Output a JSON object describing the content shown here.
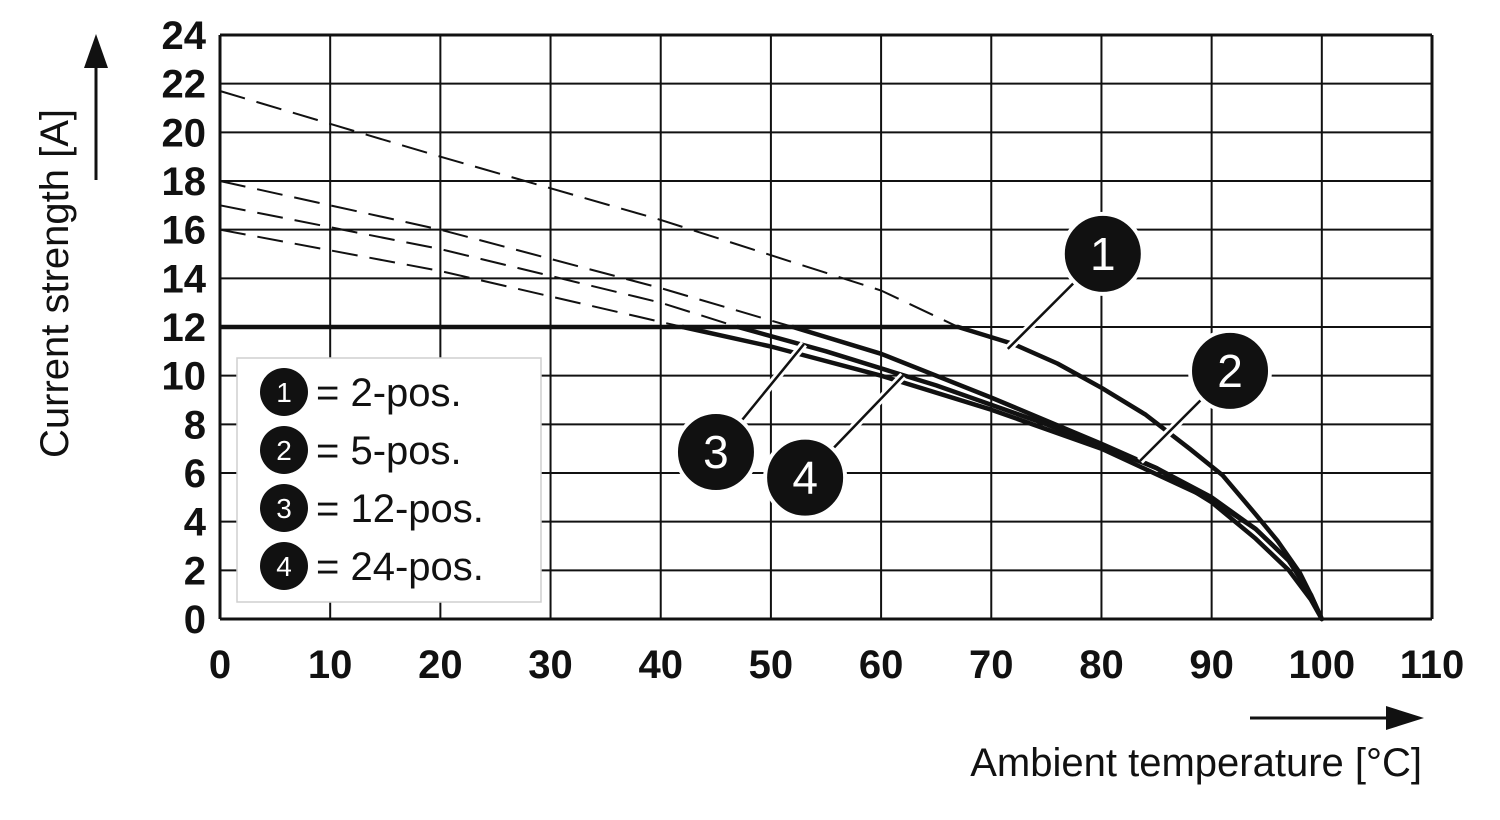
{
  "chart_data": {
    "type": "line",
    "xlabel": "Ambient temperature [°C]",
    "ylabel": "Current strength [A]",
    "xlim": [
      0,
      110
    ],
    "ylim": [
      0,
      24
    ],
    "xticks": [
      0,
      10,
      20,
      30,
      40,
      50,
      60,
      70,
      80,
      90,
      100,
      110
    ],
    "yticks": [
      0,
      2,
      4,
      6,
      8,
      10,
      12,
      14,
      16,
      18,
      20,
      22,
      24
    ],
    "grid": true,
    "legend_position": "bottom-left",
    "legend": [
      {
        "marker": "1",
        "label": "= 2-pos."
      },
      {
        "marker": "2",
        "label": "= 5-pos."
      },
      {
        "marker": "3",
        "label": "= 12-pos."
      },
      {
        "marker": "4",
        "label": "= 24-pos."
      }
    ],
    "limit_line": {
      "x": [
        0,
        67
      ],
      "y": [
        12,
        12
      ]
    },
    "series": [
      {
        "marker": "1",
        "solid": {
          "x": [
            67,
            72,
            76,
            80,
            84,
            88,
            91,
            94,
            96,
            98,
            99,
            100
          ],
          "y": [
            12.0,
            11.3,
            10.5,
            9.5,
            8.4,
            7.0,
            5.9,
            4.3,
            3.2,
            1.9,
            1.0,
            0
          ]
        },
        "dashed": {
          "x": [
            0,
            20,
            40,
            60,
            67
          ],
          "y": [
            21.7,
            19.0,
            16.4,
            13.5,
            12.0
          ]
        }
      },
      {
        "marker": "2",
        "solid": {
          "x": [
            52,
            60,
            70,
            80,
            85,
            90,
            94,
            97,
            99,
            100
          ],
          "y": [
            12.0,
            10.9,
            9.1,
            7.2,
            6.2,
            4.8,
            3.3,
            2.0,
            0.8,
            0
          ]
        },
        "dashed": {
          "x": [
            0,
            20,
            40,
            52
          ],
          "y": [
            18.0,
            16.0,
            13.6,
            12.0
          ]
        }
      },
      {
        "marker": "3",
        "solid": {
          "x": [
            47,
            55,
            65,
            75,
            85,
            90,
            94,
            97,
            99,
            100
          ],
          "y": [
            12.0,
            11.0,
            9.6,
            8.0,
            6.2,
            5.0,
            3.7,
            2.4,
            1.0,
            0
          ]
        },
        "dashed": {
          "x": [
            0,
            20,
            40,
            47
          ],
          "y": [
            17.0,
            15.2,
            13.0,
            12.0
          ]
        }
      },
      {
        "marker": "4",
        "solid": {
          "x": [
            42,
            50,
            60,
            70,
            80,
            90,
            94,
            97,
            99,
            100
          ],
          "y": [
            12.0,
            11.2,
            10.0,
            8.6,
            7.0,
            4.9,
            3.7,
            2.4,
            1.0,
            0
          ]
        },
        "dashed": {
          "x": [
            0,
            20,
            42
          ],
          "y": [
            16.0,
            14.3,
            12.0
          ]
        }
      }
    ],
    "callouts": [
      {
        "marker": "1",
        "x": 71.5,
        "y": 11.1
      },
      {
        "marker": "2",
        "x": 83.5,
        "y": 6.5
      },
      {
        "marker": "3",
        "x": 53,
        "y": 11.3
      },
      {
        "marker": "4",
        "x": 62,
        "y": 10.0
      }
    ]
  }
}
